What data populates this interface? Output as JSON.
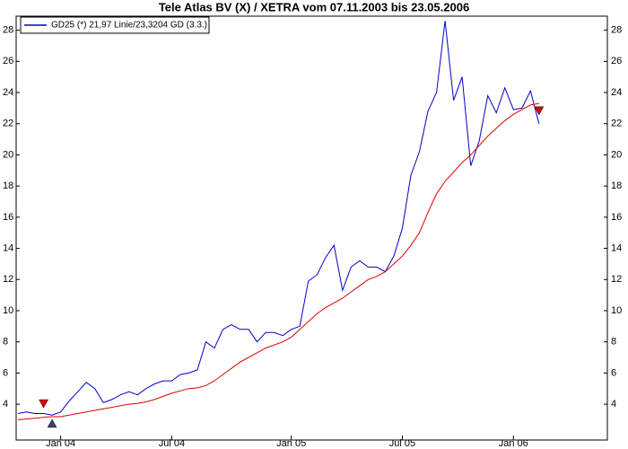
{
  "chart_data": {
    "type": "line",
    "title": "Tele Atlas BV (X) / XETRA vom 07.11.2003 bis 23.05.2006",
    "categories": [
      null,
      null,
      null,
      null,
      null,
      "Jan 04",
      null,
      null,
      null,
      null,
      null,
      null,
      null,
      null,
      null,
      null,
      null,
      null,
      "Jul 04",
      null,
      null,
      null,
      null,
      null,
      null,
      null,
      null,
      null,
      null,
      null,
      null,
      null,
      "Jan 05",
      null,
      null,
      null,
      null,
      null,
      null,
      null,
      null,
      null,
      null,
      null,
      null,
      "Jul 05",
      null,
      null,
      null,
      null,
      null,
      null,
      null,
      null,
      null,
      null,
      null,
      null,
      "Jan 06",
      null,
      null,
      null,
      null,
      null,
      null,
      null,
      null,
      null,
      null,
      null
    ],
    "series": [
      {
        "name": "GD25 (*) 21,97 Linie/23,3204 GD (3.3.)",
        "color": "#0000cc",
        "style": "line",
        "values": [
          3.4,
          3.5,
          3.4,
          3.4,
          3.3,
          3.5,
          4.2,
          4.8,
          5.4,
          5.0,
          4.1,
          4.3,
          4.6,
          4.8,
          4.6,
          5.0,
          5.3,
          5.5,
          5.5,
          5.9,
          6.0,
          6.2,
          8.0,
          7.6,
          8.8,
          9.1,
          8.8,
          8.8,
          8.0,
          8.6,
          8.6,
          8.4,
          8.8,
          9.0,
          11.9,
          12.3,
          13.4,
          14.2,
          11.3,
          12.8,
          13.2,
          12.8,
          12.8,
          12.5,
          13.5,
          15.3,
          18.7,
          20.2,
          22.8,
          24.0,
          28.6,
          23.5,
          25.0,
          19.3,
          20.9,
          23.8,
          22.7,
          24.3,
          22.9,
          23.0,
          24.1,
          22.0,
          null,
          null,
          null,
          null,
          null,
          null,
          null,
          null
        ]
      },
      {
        "color": "#dd0000",
        "style": "line",
        "values": [
          3.0,
          3.05,
          3.1,
          3.15,
          3.2,
          3.2,
          3.3,
          3.4,
          3.5,
          3.6,
          3.7,
          3.8,
          3.9,
          4.0,
          4.05,
          4.15,
          4.3,
          4.5,
          4.7,
          4.85,
          5.0,
          5.05,
          5.2,
          5.5,
          5.9,
          6.3,
          6.7,
          7.0,
          7.3,
          7.6,
          7.8,
          8.0,
          8.3,
          8.8,
          9.3,
          9.8,
          10.2,
          10.5,
          10.8,
          11.2,
          11.6,
          12.0,
          12.2,
          12.5,
          13.0,
          13.5,
          14.2,
          15.0,
          16.3,
          17.5,
          18.3,
          18.9,
          19.5,
          20.0,
          20.6,
          21.2,
          21.7,
          22.2,
          22.6,
          22.9,
          23.2,
          23.3,
          null,
          null,
          null,
          null,
          null,
          null,
          null,
          null
        ]
      },
      {
        "color": "#dd0000",
        "style": "triangle-down",
        "values": [
          null,
          null,
          null,
          4.0,
          null,
          null,
          null,
          null,
          null,
          null,
          null,
          null,
          null,
          null,
          null,
          null,
          null,
          null,
          null,
          null,
          null,
          null,
          null,
          null,
          null,
          null,
          null,
          null,
          null,
          null,
          null,
          null,
          null,
          null,
          null,
          null,
          null,
          null,
          null,
          null,
          null,
          null,
          null,
          null,
          null,
          null,
          null,
          null,
          null,
          null,
          null,
          null,
          null,
          null,
          null,
          null,
          null,
          null,
          null,
          null,
          null,
          22.8,
          null,
          null,
          null,
          null,
          null,
          null,
          null,
          null
        ]
      },
      {
        "color": "#334466",
        "style": "triangle-up",
        "values": [
          null,
          null,
          null,
          null,
          2.8,
          null,
          null,
          null,
          null,
          null,
          null,
          null,
          null,
          null,
          null,
          null,
          null,
          null,
          null,
          null,
          null,
          null,
          null,
          null,
          null,
          null,
          null,
          null,
          null,
          null,
          null,
          null,
          null,
          null,
          null,
          null,
          null,
          null,
          null,
          null,
          null,
          null,
          null,
          null,
          null,
          null,
          null,
          null,
          null,
          null,
          null,
          null,
          null,
          null,
          null,
          null,
          null,
          null,
          null,
          null,
          null,
          null,
          null,
          null,
          null,
          null,
          null,
          null,
          null,
          null
        ]
      }
    ],
    "ylim": [
      1.7,
      28.9
    ],
    "yticks": [
      4,
      6,
      8,
      10,
      12,
      14,
      16,
      18,
      20,
      22,
      24,
      26,
      28
    ],
    "grid": false,
    "legend": "top-left"
  }
}
